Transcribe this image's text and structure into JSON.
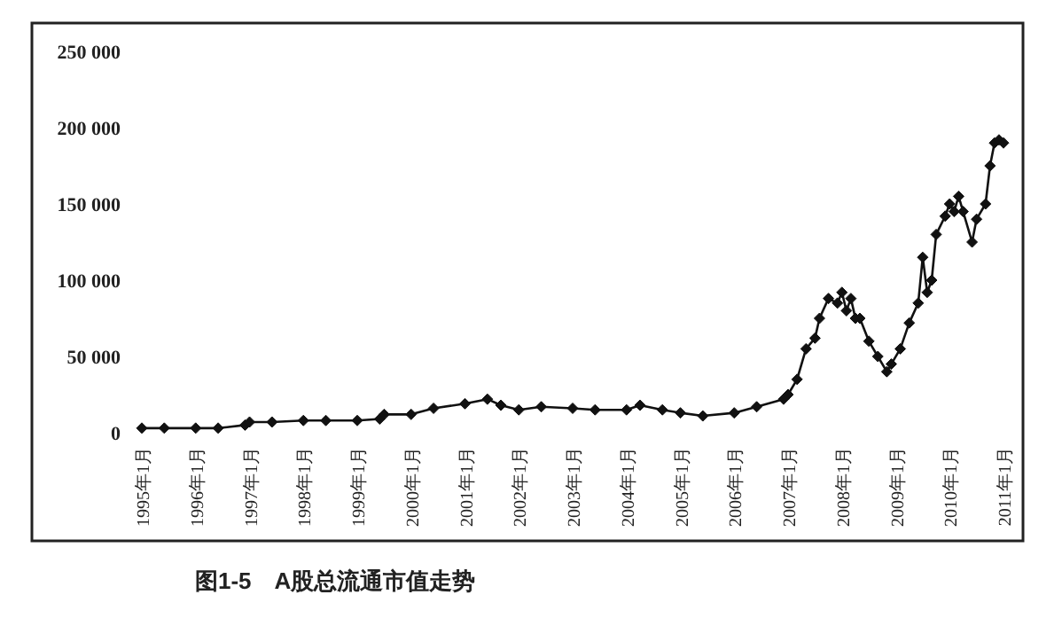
{
  "chart_data": {
    "type": "line",
    "annotations": [
      "图1-5　A股总流通市值走势"
    ],
    "x": [
      "1995-01",
      "1995-06",
      "1996-01",
      "1996-06",
      "1996-12",
      "1997-01",
      "1997-06",
      "1998-01",
      "1998-06",
      "1999-01",
      "1999-06",
      "1999-07",
      "2000-01",
      "2000-06",
      "2001-01",
      "2001-06",
      "2001-09",
      "2002-01",
      "2002-06",
      "2003-01",
      "2003-06",
      "2004-01",
      "2004-04",
      "2004-09",
      "2005-01",
      "2005-06",
      "2006-01",
      "2006-06",
      "2006-12",
      "2007-01",
      "2007-03",
      "2007-05",
      "2007-07",
      "2007-08",
      "2007-10",
      "2007-12",
      "2008-01",
      "2008-02",
      "2008-03",
      "2008-04",
      "2008-05",
      "2008-07",
      "2008-09",
      "2008-11",
      "2008-12",
      "2009-02",
      "2009-04",
      "2009-06",
      "2009-07",
      "2009-08",
      "2009-09",
      "2009-10",
      "2009-12",
      "2010-01",
      "2010-02",
      "2010-03",
      "2010-04",
      "2010-06",
      "2010-07",
      "2010-09",
      "2010-10",
      "2010-11",
      "2010-12",
      "2011-01"
    ],
    "series": [
      {
        "color": "#111111",
        "values": [
          3000,
          3000,
          3000,
          3000,
          5000,
          7000,
          7000,
          8000,
          8000,
          8000,
          9000,
          12000,
          12000,
          16000,
          19000,
          22000,
          18000,
          15000,
          17000,
          16000,
          15000,
          15000,
          18000,
          15000,
          13000,
          11000,
          13000,
          17000,
          22000,
          25000,
          35000,
          55000,
          62000,
          75000,
          88000,
          85000,
          92000,
          80000,
          88000,
          75000,
          75000,
          60000,
          50000,
          40000,
          45000,
          55000,
          72000,
          85000,
          115000,
          92000,
          100000,
          130000,
          142000,
          150000,
          145000,
          155000,
          145000,
          125000,
          140000,
          150000,
          175000,
          190000,
          192000,
          190000
        ]
      }
    ],
    "xlim": [
      "1995-01",
      "2011-01"
    ],
    "xticks": [
      {
        "value": "1995-01",
        "label": "1995年1月"
      },
      {
        "value": "1996-01",
        "label": "1996年1月"
      },
      {
        "value": "1997-01",
        "label": "1997年1月"
      },
      {
        "value": "1998-01",
        "label": "1998年1月"
      },
      {
        "value": "1999-01",
        "label": "1999年1月"
      },
      {
        "value": "2000-01",
        "label": "2000年1月"
      },
      {
        "value": "2001-01",
        "label": "2001年1月"
      },
      {
        "value": "2002-01",
        "label": "2002年1月"
      },
      {
        "value": "2003-01",
        "label": "2003年1月"
      },
      {
        "value": "2004-01",
        "label": "2004年1月"
      },
      {
        "value": "2005-01",
        "label": "2005年1月"
      },
      {
        "value": "2006-01",
        "label": "2006年1月"
      },
      {
        "value": "2007-01",
        "label": "2007年1月"
      },
      {
        "value": "2008-01",
        "label": "2008年1月"
      },
      {
        "value": "2009-01",
        "label": "2009年1月"
      },
      {
        "value": "2010-01",
        "label": "2010年1月"
      },
      {
        "value": "2011-01",
        "label": "2011年1月"
      }
    ],
    "ylim": [
      0,
      250000
    ],
    "yticks": [
      {
        "value": 0,
        "label": "0"
      },
      {
        "value": 50000,
        "label": "50 000"
      },
      {
        "value": 100000,
        "label": "100 000"
      },
      {
        "value": 150000,
        "label": "150 000"
      },
      {
        "value": 200000,
        "label": "200 000"
      },
      {
        "value": 250000,
        "label": "250 000"
      }
    ],
    "marker": "diamond",
    "line_style": "solid",
    "grid": false
  }
}
